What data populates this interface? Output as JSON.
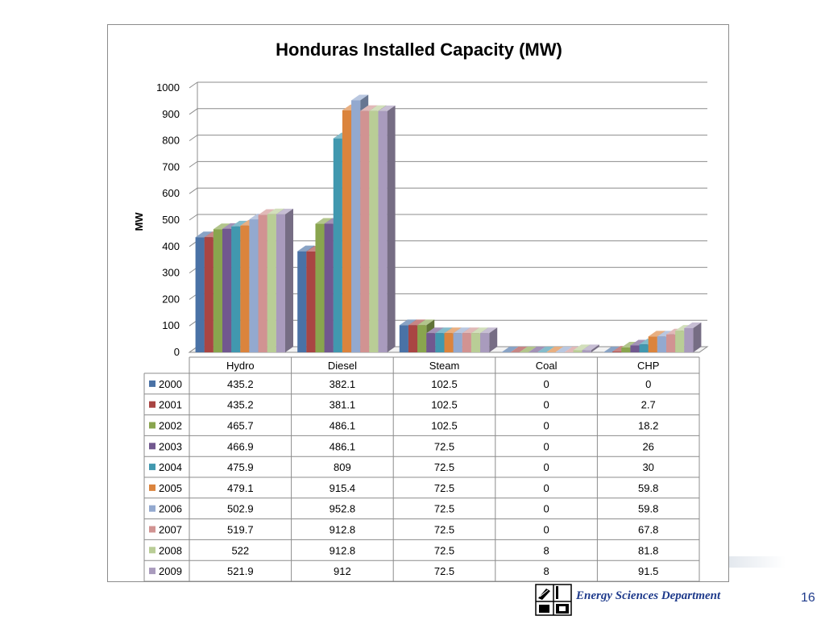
{
  "chart_data": {
    "type": "bar",
    "title": "Honduras Installed Capacity  (MW)",
    "xlabel": "",
    "ylabel": "MW",
    "ylim": [
      0,
      1000
    ],
    "yticks": [
      0,
      100,
      200,
      300,
      400,
      500,
      600,
      700,
      800,
      900,
      1000
    ],
    "grid": true,
    "legend": "data-table",
    "categories": [
      "Hydro",
      "Diesel",
      "Steam",
      "Coal",
      "CHP"
    ],
    "series": [
      {
        "name": "2000",
        "color": "#4a72a6",
        "values": [
          435.2,
          382.1,
          102.5,
          0,
          0
        ],
        "labels": [
          "435.2",
          "382.1",
          "102.5",
          "0",
          "0"
        ]
      },
      {
        "name": "2001",
        "color": "#a94543",
        "values": [
          435.2,
          381.1,
          102.5,
          0,
          2.7
        ],
        "labels": [
          "435.2",
          "381.1",
          "102.5",
          "0",
          "2.7"
        ]
      },
      {
        "name": "2002",
        "color": "#89a54e",
        "values": [
          465.7,
          486.1,
          102.5,
          0,
          18.2
        ],
        "labels": [
          "465.7",
          "486.1",
          "102.5",
          "0",
          "18.2"
        ]
      },
      {
        "name": "2003",
        "color": "#71588f",
        "values": [
          466.9,
          486.1,
          72.5,
          0,
          26
        ],
        "labels": [
          "466.9",
          "486.1",
          "72.5",
          "0",
          "26"
        ]
      },
      {
        "name": "2004",
        "color": "#4198af",
        "values": [
          475.9,
          809,
          72.5,
          0,
          30
        ],
        "labels": [
          "475.9",
          "809",
          "72.5",
          "0",
          "30"
        ]
      },
      {
        "name": "2005",
        "color": "#db843d",
        "values": [
          479.1,
          915.4,
          72.5,
          0,
          59.8
        ],
        "labels": [
          "479.1",
          "915.4",
          "72.5",
          "0",
          "59.8"
        ]
      },
      {
        "name": "2006",
        "color": "#93a9cf",
        "values": [
          502.9,
          952.8,
          72.5,
          0,
          59.8
        ],
        "labels": [
          "502.9",
          "952.8",
          "72.5",
          "0",
          "59.8"
        ]
      },
      {
        "name": "2007",
        "color": "#d19392",
        "values": [
          519.7,
          912.8,
          72.5,
          0,
          67.8
        ],
        "labels": [
          "519.7",
          "912.8",
          "72.5",
          "0",
          "67.8"
        ]
      },
      {
        "name": "2008",
        "color": "#b9cd96",
        "values": [
          522,
          912.8,
          72.5,
          8,
          81.8
        ],
        "labels": [
          "522",
          "912.8",
          "72.5",
          "8",
          "81.8"
        ]
      },
      {
        "name": "2009",
        "color": "#a99bbd",
        "values": [
          521.9,
          912,
          72.5,
          8,
          91.5
        ],
        "labels": [
          "521.9",
          "912",
          "72.5",
          "8",
          "91.5"
        ]
      }
    ]
  },
  "footer": {
    "department": "Energy Sciences Department",
    "page_number": "16"
  }
}
